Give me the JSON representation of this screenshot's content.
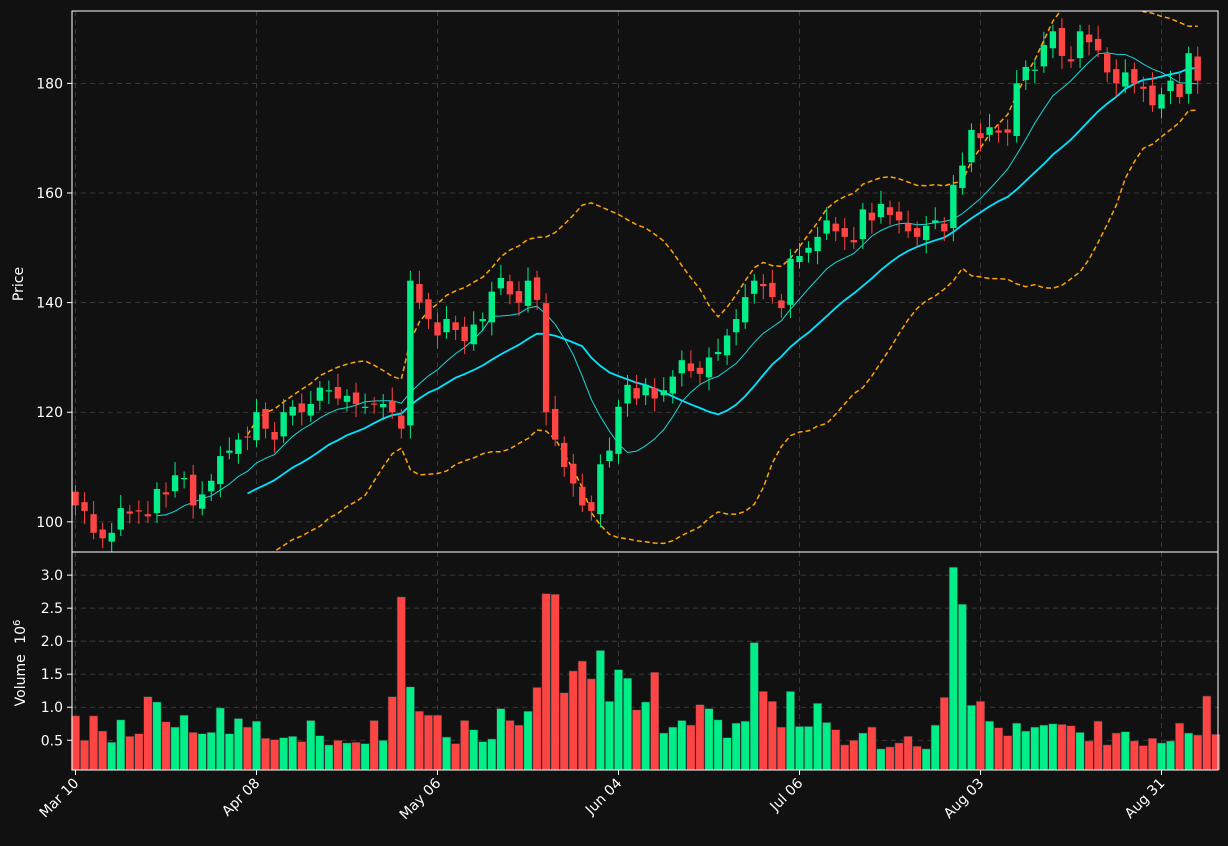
{
  "chart_data": [
    {
      "type": "candlestick",
      "title": "",
      "ylabel": "Price",
      "ylim": [
        94.5,
        193.2
      ],
      "yticks": [
        100,
        120,
        140,
        160,
        180
      ],
      "x_tick_labels": [
        "Mar 10",
        "Apr 08",
        "May 06",
        "Jun 04",
        "Jul 06",
        "Aug 03",
        "Aug 31"
      ],
      "x_tick_index": [
        0,
        20,
        40,
        60,
        80,
        100,
        120
      ],
      "grid": true,
      "colors": {
        "up": "#00ee88",
        "down": "#ff4444",
        "ma_fast": "#19d8d8",
        "ma_slow": "#00e5ff",
        "bands": "#ffa500",
        "grid": "#444444",
        "background": "#111111",
        "axis": "#ffffff"
      },
      "ma_fast_period": 10,
      "ma_slow_period": 20,
      "band_period": 20,
      "band_width_std": 2,
      "closes": [
        103,
        102,
        98,
        97,
        98,
        102.5,
        101.5,
        102,
        101,
        106,
        105,
        108.5,
        108,
        103,
        105,
        107.5,
        112,
        113,
        115,
        115.5,
        120,
        117,
        115,
        120,
        121,
        120,
        121.5,
        124.5,
        124,
        122.5,
        123,
        121.5,
        121,
        121.5,
        121.5,
        120,
        117,
        144,
        140,
        137,
        134,
        137,
        135,
        133,
        136,
        137,
        142,
        144.5,
        141.5,
        140,
        144,
        140.5,
        120,
        115,
        110,
        107,
        103,
        102,
        110.5,
        113,
        121,
        125,
        122.5,
        125,
        122.5,
        124,
        126.5,
        129.5,
        127.5,
        127,
        130,
        131,
        134,
        137,
        141,
        144,
        143,
        141,
        139,
        148,
        148.5,
        150,
        152,
        155,
        153,
        152,
        151,
        157,
        155,
        158,
        156,
        155,
        153,
        152,
        154,
        155,
        153,
        161.5,
        165,
        171.5,
        170,
        172,
        171,
        171,
        180,
        183,
        182.5,
        187,
        189.5,
        185,
        184,
        189.5,
        187.5,
        186,
        182,
        180,
        182,
        180,
        179,
        176,
        178,
        180.5,
        177.5,
        185.5,
        180.5
      ],
      "volume_panel": {
        "ylabel": "Volume",
        "unit_exponent": "6",
        "ylim": [
          0.05,
          3.35
        ],
        "yticks": [
          0.5,
          1.0,
          1.5,
          2.0,
          2.5,
          3.0
        ],
        "volumes": [
          0.87,
          0.5,
          0.87,
          0.64,
          0.47,
          0.81,
          0.56,
          0.6,
          1.16,
          1.08,
          0.78,
          0.7,
          0.88,
          0.62,
          0.6,
          0.62,
          0.99,
          0.6,
          0.83,
          0.7,
          0.79,
          0.53,
          0.51,
          0.54,
          0.56,
          0.48,
          0.8,
          0.57,
          0.43,
          0.5,
          0.46,
          0.47,
          0.45,
          0.8,
          0.5,
          1.16,
          2.67,
          1.31,
          0.94,
          0.88,
          0.88,
          0.55,
          0.45,
          0.8,
          0.66,
          0.48,
          0.52,
          0.98,
          0.8,
          0.73,
          0.94,
          1.3,
          2.72,
          2.71,
          1.22,
          1.55,
          1.7,
          1.43,
          1.86,
          1.09,
          1.57,
          1.44,
          0.96,
          1.08,
          1.53,
          0.61,
          0.7,
          0.8,
          0.73,
          1.04,
          0.98,
          0.81,
          0.54,
          0.76,
          0.79,
          1.98,
          1.24,
          1.09,
          0.7,
          1.24,
          0.71,
          0.71,
          1.06,
          0.77,
          0.66,
          0.43,
          0.5,
          0.61,
          0.7,
          0.37,
          0.4,
          0.46,
          0.56,
          0.41,
          0.37,
          0.73,
          1.15,
          3.12,
          2.56,
          1.03,
          1.09,
          0.79,
          0.69,
          0.57,
          0.76,
          0.64,
          0.7,
          0.73,
          0.75,
          0.74,
          0.72,
          0.62,
          0.49,
          0.79,
          0.43,
          0.61,
          0.63,
          0.49,
          0.42,
          0.53,
          0.46,
          0.49,
          0.76,
          0.61,
          0.58,
          1.17,
          0.59
        ]
      }
    }
  ]
}
